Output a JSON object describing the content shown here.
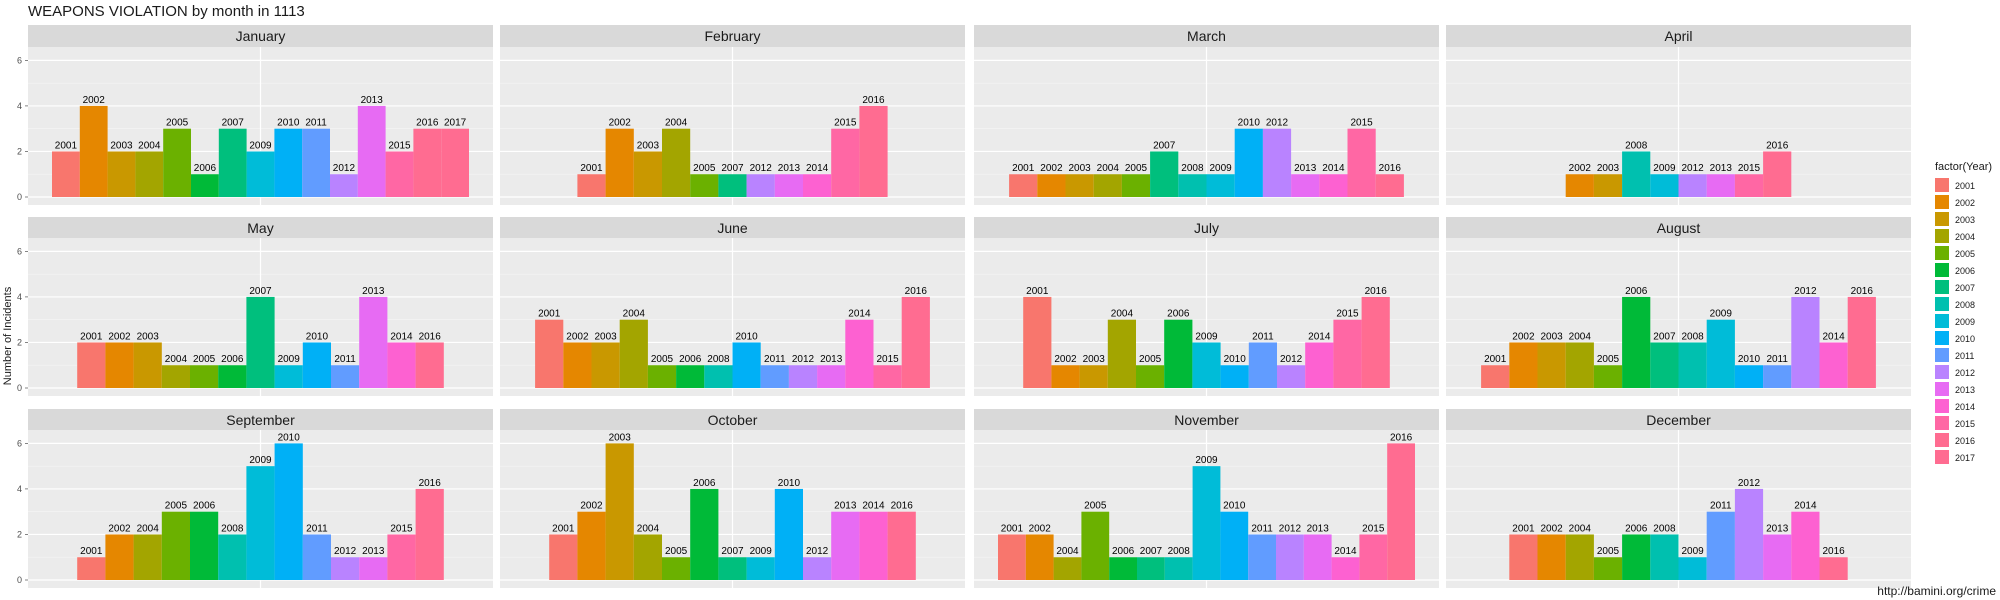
{
  "chart_data": {
    "type": "bar",
    "title": "WEAPONS VIOLATION by month in 1113",
    "ylabel": "Number of Incidents",
    "xlabel": "",
    "ylim": [
      0,
      6.5
    ],
    "y_ticks": [
      0,
      2,
      4,
      6
    ],
    "legend": {
      "title": "factor(Year)",
      "position": "right"
    },
    "year_colors": {
      "2001": "#F8766D",
      "2002": "#E58700",
      "2003": "#C99800",
      "2004": "#A3A500",
      "2005": "#6BB100",
      "2006": "#00BA38",
      "2007": "#00BF7D",
      "2008": "#00C0AF",
      "2009": "#00BCD8",
      "2010": "#00B0F6",
      "2011": "#619CFF",
      "2012": "#B983FF",
      "2013": "#E76BF3",
      "2014": "#FD61D1",
      "2015": "#FF67A4",
      "2016": "#FF6C91",
      "2017": "#FF6C91"
    },
    "facets": [
      {
        "month": "January",
        "bars": [
          [
            "2001",
            2
          ],
          [
            "2002",
            4
          ],
          [
            "2003",
            2
          ],
          [
            "2004",
            2
          ],
          [
            "2005",
            3
          ],
          [
            "2006",
            1
          ],
          [
            "2007",
            3
          ],
          [
            "2009",
            2
          ],
          [
            "2010",
            3
          ],
          [
            "2011",
            3
          ],
          [
            "2012",
            1
          ],
          [
            "2013",
            4
          ],
          [
            "2015",
            2
          ],
          [
            "2016",
            3
          ],
          [
            "2017",
            3
          ]
        ]
      },
      {
        "month": "February",
        "bars": [
          [
            "2001",
            1
          ],
          [
            "2002",
            3
          ],
          [
            "2003",
            2
          ],
          [
            "2004",
            3
          ],
          [
            "2005",
            1
          ],
          [
            "2007",
            1
          ],
          [
            "2012",
            1
          ],
          [
            "2013",
            1
          ],
          [
            "2014",
            1
          ],
          [
            "2015",
            3
          ],
          [
            "2016",
            4
          ]
        ]
      },
      {
        "month": "March",
        "bars": [
          [
            "2001",
            1
          ],
          [
            "2002",
            1
          ],
          [
            "2003",
            1
          ],
          [
            "2004",
            1
          ],
          [
            "2005",
            1
          ],
          [
            "2007",
            2
          ],
          [
            "2008",
            1
          ],
          [
            "2009",
            1
          ],
          [
            "2010",
            3
          ],
          [
            "2012",
            3
          ],
          [
            "2013",
            1
          ],
          [
            "2014",
            1
          ],
          [
            "2015",
            3
          ],
          [
            "2016",
            1
          ]
        ]
      },
      {
        "month": "April",
        "bars": [
          [
            "2002",
            1
          ],
          [
            "2003",
            1
          ],
          [
            "2008",
            2
          ],
          [
            "2009",
            1
          ],
          [
            "2012",
            1
          ],
          [
            "2013",
            1
          ],
          [
            "2015",
            1
          ],
          [
            "2016",
            2
          ]
        ]
      },
      {
        "month": "May",
        "bars": [
          [
            "2001",
            2
          ],
          [
            "2002",
            2
          ],
          [
            "2003",
            2
          ],
          [
            "2004",
            1
          ],
          [
            "2005",
            1
          ],
          [
            "2006",
            1
          ],
          [
            "2007",
            4
          ],
          [
            "2009",
            1
          ],
          [
            "2010",
            2
          ],
          [
            "2011",
            1
          ],
          [
            "2013",
            4
          ],
          [
            "2014",
            2
          ],
          [
            "2016",
            2
          ]
        ]
      },
      {
        "month": "June",
        "bars": [
          [
            "2001",
            3
          ],
          [
            "2002",
            2
          ],
          [
            "2003",
            2
          ],
          [
            "2004",
            3
          ],
          [
            "2005",
            1
          ],
          [
            "2006",
            1
          ],
          [
            "2008",
            1
          ],
          [
            "2010",
            2
          ],
          [
            "2011",
            1
          ],
          [
            "2012",
            1
          ],
          [
            "2013",
            1
          ],
          [
            "2014",
            3
          ],
          [
            "2015",
            1
          ],
          [
            "2016",
            4
          ]
        ]
      },
      {
        "month": "July",
        "bars": [
          [
            "2001",
            4
          ],
          [
            "2002",
            1
          ],
          [
            "2003",
            1
          ],
          [
            "2004",
            3
          ],
          [
            "2005",
            1
          ],
          [
            "2006",
            3
          ],
          [
            "2009",
            2
          ],
          [
            "2010",
            1
          ],
          [
            "2011",
            2
          ],
          [
            "2012",
            1
          ],
          [
            "2014",
            2
          ],
          [
            "2015",
            3
          ],
          [
            "2016",
            4
          ]
        ]
      },
      {
        "month": "August",
        "bars": [
          [
            "2001",
            1
          ],
          [
            "2002",
            2
          ],
          [
            "2003",
            2
          ],
          [
            "2004",
            2
          ],
          [
            "2005",
            1
          ],
          [
            "2006",
            4
          ],
          [
            "2007",
            2
          ],
          [
            "2008",
            2
          ],
          [
            "2009",
            3
          ],
          [
            "2010",
            1
          ],
          [
            "2011",
            1
          ],
          [
            "2012",
            4
          ],
          [
            "2014",
            2
          ],
          [
            "2016",
            4
          ]
        ]
      },
      {
        "month": "September",
        "bars": [
          [
            "2001",
            1
          ],
          [
            "2002",
            2
          ],
          [
            "2004",
            2
          ],
          [
            "2005",
            3
          ],
          [
            "2006",
            3
          ],
          [
            "2008",
            2
          ],
          [
            "2009",
            5
          ],
          [
            "2010",
            6
          ],
          [
            "2011",
            2
          ],
          [
            "2012",
            1
          ],
          [
            "2013",
            1
          ],
          [
            "2015",
            2
          ],
          [
            "2016",
            4
          ]
        ]
      },
      {
        "month": "October",
        "bars": [
          [
            "2001",
            2
          ],
          [
            "2002",
            3
          ],
          [
            "2003",
            6
          ],
          [
            "2004",
            2
          ],
          [
            "2005",
            1
          ],
          [
            "2006",
            4
          ],
          [
            "2007",
            1
          ],
          [
            "2009",
            1
          ],
          [
            "2010",
            4
          ],
          [
            "2012",
            1
          ],
          [
            "2013",
            3
          ],
          [
            "2014",
            3
          ],
          [
            "2016",
            3
          ]
        ]
      },
      {
        "month": "November",
        "bars": [
          [
            "2001",
            2
          ],
          [
            "2002",
            2
          ],
          [
            "2004",
            1
          ],
          [
            "2005",
            3
          ],
          [
            "2006",
            1
          ],
          [
            "2007",
            1
          ],
          [
            "2008",
            1
          ],
          [
            "2009",
            5
          ],
          [
            "2010",
            3
          ],
          [
            "2011",
            2
          ],
          [
            "2012",
            2
          ],
          [
            "2013",
            2
          ],
          [
            "2014",
            1
          ],
          [
            "2015",
            2
          ],
          [
            "2016",
            6
          ]
        ]
      },
      {
        "month": "December",
        "bars": [
          [
            "2001",
            2
          ],
          [
            "2002",
            2
          ],
          [
            "2004",
            2
          ],
          [
            "2005",
            1
          ],
          [
            "2006",
            2
          ],
          [
            "2008",
            2
          ],
          [
            "2009",
            1
          ],
          [
            "2011",
            3
          ],
          [
            "2012",
            4
          ],
          [
            "2013",
            2
          ],
          [
            "2014",
            3
          ],
          [
            "2016",
            1
          ]
        ]
      }
    ]
  },
  "source": "http://bamini.org/crime"
}
